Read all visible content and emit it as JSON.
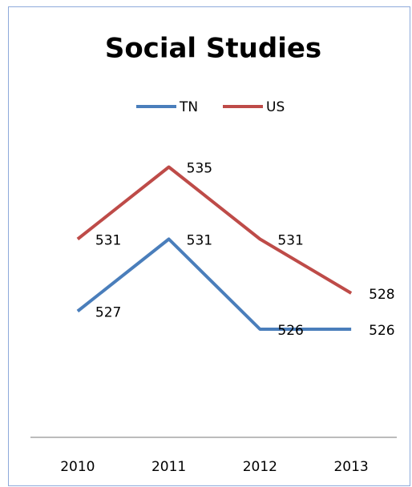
{
  "chart_data": {
    "type": "line",
    "title": "Social Studies",
    "categories": [
      "2010",
      "2011",
      "2012",
      "2013"
    ],
    "series": [
      {
        "name": "TN",
        "color": "#4a7ebb",
        "values": [
          527,
          531,
          526,
          526
        ]
      },
      {
        "name": "US",
        "color": "#be4b48",
        "values": [
          531,
          535,
          531,
          528
        ]
      }
    ],
    "ylim": [
      520,
      540
    ],
    "legend": "top",
    "data_labels": true
  }
}
